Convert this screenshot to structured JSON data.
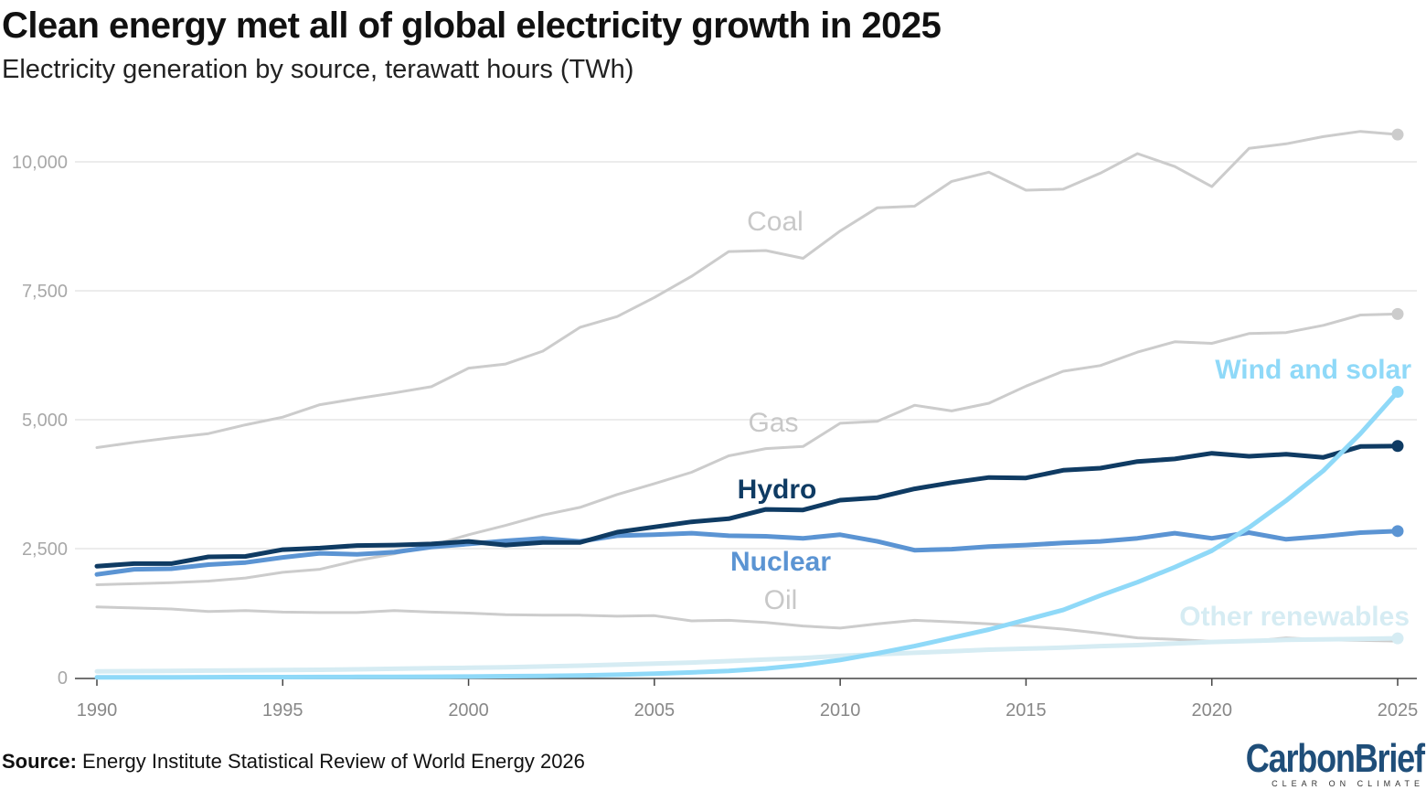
{
  "title": "Clean energy met all of global electricity growth in 2025",
  "subtitle": "Electricity generation by source, terawatt hours (TWh)",
  "source_label": "Source:",
  "source_text": "Energy Institute Statistical Review of World Energy 2026",
  "logo": {
    "main": "CarbonBrief",
    "tagline": "CLEAR ON CLIMATE"
  },
  "chart_data": {
    "type": "line",
    "title": "Clean energy met all of global electricity growth in 2025",
    "subtitle": "Electricity generation by source, terawatt hours (TWh)",
    "xlabel": "",
    "ylabel": "",
    "xlim": [
      1990,
      2025
    ],
    "ylim": [
      0,
      10500
    ],
    "y_ticks": [
      0,
      2500,
      5000,
      7500,
      10000
    ],
    "y_tick_labels": [
      "0",
      "2,500",
      "5,000",
      "7,500",
      "10,000"
    ],
    "x_ticks": [
      1990,
      1995,
      2000,
      2005,
      2010,
      2015,
      2020,
      2025
    ],
    "x_tick_labels": [
      "1990",
      "1995",
      "2000",
      "2005",
      "2010",
      "2015",
      "2020",
      "2025"
    ],
    "grid": "horizontal",
    "legend": "direct labels",
    "x": [
      1990,
      1991,
      1992,
      1993,
      1994,
      1995,
      1996,
      1997,
      1998,
      1999,
      2000,
      2001,
      2002,
      2003,
      2004,
      2005,
      2006,
      2007,
      2008,
      2009,
      2010,
      2011,
      2012,
      2013,
      2014,
      2015,
      2016,
      2017,
      2018,
      2019,
      2020,
      2021,
      2022,
      2023,
      2024,
      2025
    ],
    "series": [
      {
        "name": "Coal",
        "color": "#cccccc",
        "width": 3,
        "end_marker": true,
        "values": [
          4460,
          4560,
          4650,
          4730,
          4900,
          5050,
          5290,
          5410,
          5520,
          5640,
          6000,
          6080,
          6330,
          6790,
          7000,
          7370,
          7780,
          8260,
          8280,
          8130,
          8660,
          9110,
          9140,
          9620,
          9800,
          9450,
          9470,
          9780,
          10160,
          9910,
          9520,
          10260,
          10350,
          10490,
          10590,
          10530
        ]
      },
      {
        "name": "Gas",
        "color": "#cccccc",
        "width": 3,
        "end_marker": true,
        "values": [
          1800,
          1820,
          1840,
          1870,
          1930,
          2040,
          2100,
          2270,
          2400,
          2560,
          2770,
          2950,
          3150,
          3300,
          3550,
          3760,
          3980,
          4300,
          4440,
          4480,
          4930,
          4970,
          5280,
          5170,
          5320,
          5650,
          5940,
          6050,
          6310,
          6510,
          6480,
          6670,
          6690,
          6830,
          7030,
          7050
        ]
      },
      {
        "name": "Oil",
        "color": "#cccccc",
        "width": 3,
        "end_marker": false,
        "values": [
          1370,
          1350,
          1330,
          1280,
          1300,
          1270,
          1260,
          1260,
          1300,
          1270,
          1250,
          1220,
          1210,
          1210,
          1190,
          1200,
          1100,
          1110,
          1070,
          1000,
          960,
          1040,
          1110,
          1080,
          1040,
          1000,
          940,
          860,
          770,
          740,
          700,
          700,
          770,
          730,
          720,
          710
        ]
      },
      {
        "name": "Other renewables",
        "color": "#d6ecf3",
        "width": 5,
        "end_marker": true,
        "values": [
          120,
          125,
          130,
          135,
          140,
          145,
          150,
          160,
          170,
          180,
          190,
          200,
          215,
          230,
          250,
          270,
          290,
          320,
          350,
          380,
          420,
          450,
          480,
          510,
          540,
          560,
          580,
          610,
          630,
          660,
          690,
          710,
          730,
          740,
          750,
          760
        ]
      },
      {
        "name": "Nuclear",
        "color": "#5b94d3",
        "width": 5,
        "end_marker": true,
        "values": [
          2000,
          2100,
          2110,
          2190,
          2230,
          2330,
          2410,
          2390,
          2430,
          2530,
          2590,
          2650,
          2700,
          2640,
          2750,
          2770,
          2800,
          2750,
          2740,
          2700,
          2770,
          2640,
          2470,
          2490,
          2540,
          2570,
          2610,
          2640,
          2700,
          2800,
          2700,
          2810,
          2680,
          2740,
          2810,
          2840
        ]
      },
      {
        "name": "Hydro",
        "color": "#0f3b63",
        "width": 5,
        "end_marker": true,
        "values": [
          2160,
          2210,
          2210,
          2340,
          2350,
          2480,
          2510,
          2560,
          2570,
          2590,
          2640,
          2570,
          2620,
          2620,
          2820,
          2920,
          3020,
          3080,
          3260,
          3250,
          3440,
          3490,
          3660,
          3780,
          3880,
          3870,
          4020,
          4060,
          4190,
          4240,
          4350,
          4290,
          4330,
          4270,
          4480,
          4490
        ]
      },
      {
        "name": "Wind and solar",
        "color": "#8fd9f8",
        "width": 5,
        "end_marker": true,
        "values": [
          4,
          5,
          6,
          7,
          8,
          9,
          10,
          12,
          14,
          16,
          20,
          26,
          32,
          40,
          55,
          75,
          100,
          130,
          175,
          245,
          340,
          470,
          610,
          770,
          930,
          1120,
          1310,
          1590,
          1850,
          2140,
          2460,
          2910,
          3430,
          4010,
          4730,
          5540
        ]
      }
    ],
    "labels": [
      {
        "series": "Coal",
        "text": "Coal"
      },
      {
        "series": "Gas",
        "text": "Gas"
      },
      {
        "series": "Oil",
        "text": "Oil"
      },
      {
        "series": "Hydro",
        "text": "Hydro"
      },
      {
        "series": "Nuclear",
        "text": "Nuclear"
      },
      {
        "series": "Wind and solar",
        "text": "Wind and solar"
      },
      {
        "series": "Other renewables",
        "text": "Other renewables"
      }
    ]
  }
}
